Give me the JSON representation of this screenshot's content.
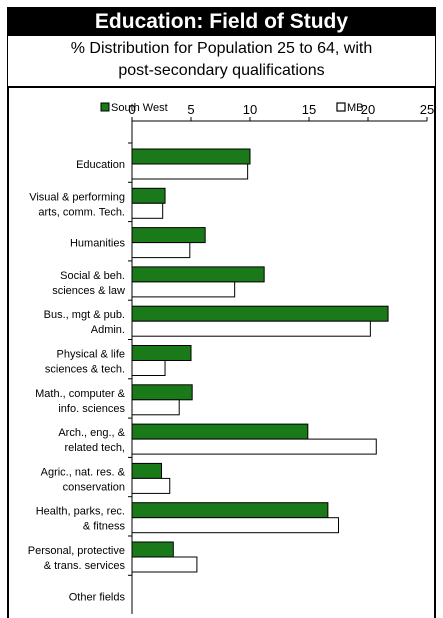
{
  "header": {
    "title": "Education: Field of Study",
    "subtitle_line1": "% Distribution for Population 25 to 64, with",
    "subtitle_line2": "post-secondary qualifications"
  },
  "colors": {
    "south_west": "#1a7a1a",
    "mb": "#ffffff",
    "outline": "#000000",
    "title_bg": "#000000"
  },
  "chart_data": {
    "type": "bar",
    "orientation": "horizontal",
    "title": "Education: Field of Study",
    "subtitle": "% Distribution for Population 25 to 64, with post-secondary qualifications",
    "categories": [
      [
        "Education"
      ],
      [
        "Visual & performing",
        "arts, comm. Tech."
      ],
      [
        "Humanities"
      ],
      [
        "Social & beh.",
        "sciences & law"
      ],
      [
        "Bus., mgt & pub.",
        "Admin."
      ],
      [
        "Physical & life",
        "sciences & tech."
      ],
      [
        "Math., computer &",
        "info. sciences"
      ],
      [
        "Arch., eng., &",
        "related tech,"
      ],
      [
        "Agric., nat. res. &",
        "conservation"
      ],
      [
        "Health, parks, rec.",
        "& fitness"
      ],
      [
        "Personal, protective",
        "& trans. services"
      ],
      [
        "Other fields"
      ]
    ],
    "series": [
      {
        "name": "South West",
        "values": [
          10.0,
          2.8,
          6.2,
          11.2,
          21.7,
          5.0,
          5.1,
          14.9,
          2.5,
          16.6,
          3.5,
          0
        ]
      },
      {
        "name": "MB",
        "values": [
          9.8,
          2.6,
          4.9,
          8.7,
          20.2,
          2.8,
          4.0,
          20.7,
          3.2,
          17.5,
          5.5,
          0
        ]
      }
    ],
    "xlim": [
      0,
      25
    ],
    "xticks": [
      0,
      5,
      10,
      15,
      20,
      25
    ],
    "legend_position": "top",
    "grid": false
  }
}
